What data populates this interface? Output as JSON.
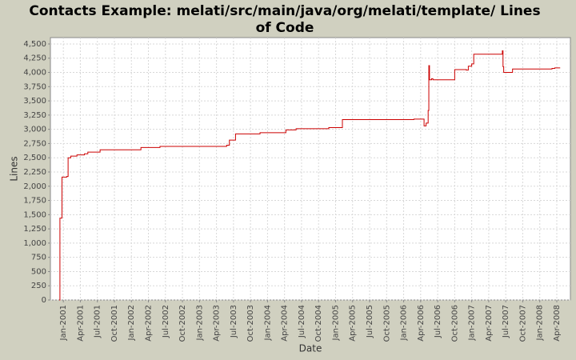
{
  "chart_data": {
    "type": "step-line",
    "title": "Contacts Example: melati/src/main/java/org/melati/template/ Lines of Code",
    "x_label": "Date",
    "y_label": "Lines",
    "grid": true,
    "xlim": [
      2000.81,
      2008.45
    ],
    "ylim": [
      0,
      4612
    ],
    "xticks": [
      {
        "value": 2001.0,
        "label": "Jan-2001"
      },
      {
        "value": 2001.25,
        "label": "Apr-2001"
      },
      {
        "value": 2001.5,
        "label": "Jul-2001"
      },
      {
        "value": 2001.75,
        "label": "Oct-2001"
      },
      {
        "value": 2002.0,
        "label": "Jan-2002"
      },
      {
        "value": 2002.25,
        "label": "Apr-2002"
      },
      {
        "value": 2002.5,
        "label": "Jul-2002"
      },
      {
        "value": 2002.75,
        "label": "Oct-2002"
      },
      {
        "value": 2003.0,
        "label": "Jan-2003"
      },
      {
        "value": 2003.25,
        "label": "Apr-2003"
      },
      {
        "value": 2003.5,
        "label": "Jul-2003"
      },
      {
        "value": 2003.75,
        "label": "Oct-2003"
      },
      {
        "value": 2004.0,
        "label": "Jan-2004"
      },
      {
        "value": 2004.25,
        "label": "Apr-2004"
      },
      {
        "value": 2004.5,
        "label": "Jul-2004"
      },
      {
        "value": 2004.75,
        "label": "Oct-2004"
      },
      {
        "value": 2005.0,
        "label": "Jan-2005"
      },
      {
        "value": 2005.25,
        "label": "Apr-2005"
      },
      {
        "value": 2005.5,
        "label": "Jul-2005"
      },
      {
        "value": 2005.75,
        "label": "Oct-2005"
      },
      {
        "value": 2006.0,
        "label": "Jan-2006"
      },
      {
        "value": 2006.25,
        "label": "Apr-2006"
      },
      {
        "value": 2006.5,
        "label": "Jul-2006"
      },
      {
        "value": 2006.75,
        "label": "Oct-2006"
      },
      {
        "value": 2007.0,
        "label": "Jan-2007"
      },
      {
        "value": 2007.25,
        "label": "Apr-2007"
      },
      {
        "value": 2007.5,
        "label": "Jul-2007"
      },
      {
        "value": 2007.75,
        "label": "Oct-2007"
      },
      {
        "value": 2008.0,
        "label": "Jan-2008"
      },
      {
        "value": 2008.25,
        "label": "Apr-2008"
      }
    ],
    "yticks": [
      0,
      250,
      500,
      750,
      {
        "value": 1000,
        "label": "1,000"
      },
      {
        "value": 1250,
        "label": "1,250"
      },
      {
        "value": 1500,
        "label": "1,500"
      },
      {
        "value": 1750,
        "label": "1,750"
      },
      {
        "value": 2000,
        "label": "2,000"
      },
      {
        "value": 2250,
        "label": "2,250"
      },
      {
        "value": 2500,
        "label": "2,500"
      },
      {
        "value": 2750,
        "label": "2,750"
      },
      {
        "value": 3000,
        "label": "3,000"
      },
      {
        "value": 3250,
        "label": "3,250"
      },
      {
        "value": 3500,
        "label": "3,500"
      },
      {
        "value": 3750,
        "label": "3,750"
      },
      {
        "value": 4000,
        "label": "4,000"
      },
      {
        "value": 4250,
        "label": "4,250"
      },
      {
        "value": 4500,
        "label": "4,500"
      }
    ],
    "series": [
      {
        "color": "#cc0000",
        "x": [
          2000.94,
          2000.95,
          2000.98,
          2001.05,
          2001.07,
          2001.11,
          2001.2,
          2001.31,
          2001.36,
          2001.54,
          2002.14,
          2002.42,
          2003.4,
          2003.44,
          2003.53,
          2003.89,
          2004.27,
          2004.42,
          2004.9,
          2005.1,
          2006.15,
          2006.3,
          2006.33,
          2006.36,
          2006.37,
          2006.38,
          2006.41,
          2006.43,
          2006.75,
          2006.92,
          2006.95,
          2007.0,
          2007.03,
          2007.45,
          2007.46,
          2007.47,
          2007.6,
          2008.18,
          2008.22,
          2008.3
        ],
        "values": [
          0,
          1440,
          2160,
          2170,
          2500,
          2530,
          2550,
          2570,
          2600,
          2640,
          2680,
          2700,
          2720,
          2810,
          2920,
          2940,
          2990,
          3010,
          3030,
          3170,
          3180,
          3060,
          3110,
          3330,
          4120,
          3870,
          3890,
          3870,
          4050,
          4040,
          4110,
          4150,
          4320,
          4380,
          4100,
          4000,
          4060,
          4070,
          4080,
          4080
        ]
      }
    ]
  }
}
